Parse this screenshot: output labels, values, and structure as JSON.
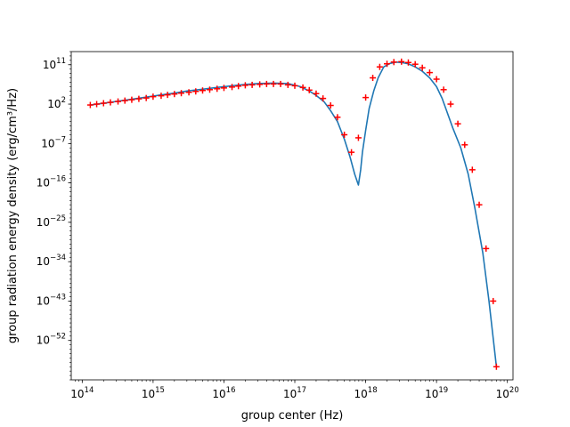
{
  "chart_data": {
    "type": "line",
    "xlabel": "group center (Hz)",
    "ylabel": "group radiation energy density (erg/cm³/Hz)",
    "x_scale": "log",
    "y_scale": "log",
    "xlim": [
      70000000000000.0,
      1.2e+20
    ],
    "ylim": [
      1e-61,
      100000000000000.0
    ],
    "x_ticks": [
      {
        "value": 100000000000000.0,
        "base": "10",
        "exp": "14"
      },
      {
        "value": 1000000000000000.0,
        "base": "10",
        "exp": "15"
      },
      {
        "value": 1e+16,
        "base": "10",
        "exp": "16"
      },
      {
        "value": 1e+17,
        "base": "10",
        "exp": "17"
      },
      {
        "value": 1e+18,
        "base": "10",
        "exp": "18"
      },
      {
        "value": 1e+19,
        "base": "10",
        "exp": "19"
      },
      {
        "value": 1e+20,
        "base": "10",
        "exp": "20"
      }
    ],
    "y_ticks": [
      {
        "value": 100000000000.0,
        "base": "10",
        "exp": "11"
      },
      {
        "value": 100.0,
        "base": "10",
        "exp": "2"
      },
      {
        "value": 1e-07,
        "base": "10",
        "exp": "−7"
      },
      {
        "value": 1e-16,
        "base": "10",
        "exp": "−16"
      },
      {
        "value": 1e-25,
        "base": "10",
        "exp": "−25"
      },
      {
        "value": 1e-34,
        "base": "10",
        "exp": "−34"
      },
      {
        "value": 1e-43,
        "base": "10",
        "exp": "−43"
      },
      {
        "value": 1e-52,
        "base": "10",
        "exp": "−52"
      }
    ],
    "series": [
      {
        "style": "line",
        "color": "#1f77b4",
        "points": [
          [
            130000000000000.0,
            63.0
          ],
          [
            200000000000000.0,
            160.0
          ],
          [
            300000000000000.0,
            400.0
          ],
          [
            500000000000000.0,
            1300.0
          ],
          [
            800000000000000.0,
            4000.0
          ],
          [
            1300000000000000.0,
            13000.0
          ],
          [
            2000000000000000.0,
            32000.0
          ],
          [
            3000000000000000.0,
            100000.0
          ],
          [
            5000000000000000.0,
            250000.0
          ],
          [
            8000000000000000.0,
            630000.0
          ],
          [
            1.3e+16,
            1600000.0
          ],
          [
            2e+16,
            3200000.0
          ],
          [
            3e+16,
            5000000.0
          ],
          [
            5e+16,
            6300000.0
          ],
          [
            8e+16,
            5000000.0
          ],
          [
            1.2e+17,
            1000000.0
          ],
          [
            1.6e+17,
            100000.0
          ],
          [
            2e+17,
            10000.0
          ],
          [
            2.6e+17,
            320.0
          ],
          [
            3.2e+17,
            3.2
          ],
          [
            4e+17,
            0.01
          ],
          [
            5e+17,
            1e-06
          ],
          [
            6e+17,
            1e-10
          ],
          [
            7e+17,
            1e-14
          ],
          [
            7.9e+17,
            3.2e-17
          ],
          [
            8.5e+17,
            1e-13
          ],
          [
            9e+17,
            1e-09
          ],
          [
            1e+18,
            0.0001
          ],
          [
            1.12e+18,
            10.0
          ],
          [
            1.3e+18,
            100000.0
          ],
          [
            1.5e+18,
            100000000.0
          ],
          [
            1.8e+18,
            32000000000.0
          ],
          [
            2.2e+18,
            200000000000.0
          ],
          [
            2.7e+18,
            400000000000.0
          ],
          [
            3.2e+18,
            320000000000.0
          ],
          [
            4e+18,
            160000000000.0
          ],
          [
            5e+18,
            32000000000.0
          ],
          [
            6.3e+18,
            3200000000.0
          ],
          [
            8e+18,
            100000000.0
          ],
          [
            1e+19,
            1000000.0
          ],
          [
            1.2e+19,
            2000.0
          ],
          [
            1.4e+19,
            2.0
          ],
          [
            1.7e+19,
            0.00032
          ],
          [
            2.2e+19,
            1e-08
          ],
          [
            2.8e+19,
            1e-14
          ],
          [
            3.5e+19,
            1e-22
          ],
          [
            4.5e+19,
            1e-32
          ],
          [
            5.5e+19,
            1e-43
          ],
          [
            7e+19,
            1e-58
          ]
        ]
      },
      {
        "style": "marker",
        "marker": "+",
        "color": "#ff0000",
        "points": [
          [
            130000000000000.0,
            63.0
          ],
          [
            160000000000000.0,
            100.0
          ],
          [
            200000000000000.0,
            160.0
          ],
          [
            250000000000000.0,
            250.0
          ],
          [
            320000000000000.0,
            400.0
          ],
          [
            400000000000000.0,
            630.0
          ],
          [
            500000000000000.0,
            1000.0
          ],
          [
            630000000000000.0,
            1600.0
          ],
          [
            800000000000000.0,
            2500.0
          ],
          [
            1000000000000000.0,
            5000.0
          ],
          [
            1300000000000000.0,
            8000.0
          ],
          [
            1600000000000000.0,
            13000.0
          ],
          [
            2000000000000000.0,
            20000.0
          ],
          [
            2500000000000000.0,
            32000.0
          ],
          [
            3200000000000000.0,
            50000.0
          ],
          [
            4000000000000000.0,
            80000.0
          ],
          [
            5000000000000000.0,
            130000.0
          ],
          [
            6300000000000000.0,
            200000.0
          ],
          [
            8000000000000000.0,
            320000.0
          ],
          [
            1e+16,
            500000.0
          ],
          [
            1.3e+16,
            800000.0
          ],
          [
            1.6e+16,
            1300000.0
          ],
          [
            2e+16,
            2000000.0
          ],
          [
            2.5e+16,
            2500000.0
          ],
          [
            3.2e+16,
            3200000.0
          ],
          [
            4e+16,
            4000000.0
          ],
          [
            5e+16,
            4000000.0
          ],
          [
            6.3e+16,
            4000000.0
          ],
          [
            8e+16,
            2500000.0
          ],
          [
            1e+17,
            1600000.0
          ],
          [
            1.3e+17,
            630000.0
          ],
          [
            1.6e+17,
            160000.0
          ],
          [
            2e+17,
            25000.0
          ],
          [
            2.5e+17,
            2000.0
          ],
          [
            3.2e+17,
            50.0
          ],
          [
            4e+17,
            0.1
          ],
          [
            5e+17,
            1e-05
          ],
          [
            6.3e+17,
            1e-09
          ],
          [
            7.9e+17,
            2e-06
          ],
          [
            1e+18,
            3200.0
          ],
          [
            1.26e+18,
            100000000.0
          ],
          [
            1.58e+18,
            32000000000.0
          ],
          [
            2e+18,
            160000000000.0
          ],
          [
            2.5e+18,
            400000000000.0
          ],
          [
            3.2e+18,
            500000000000.0
          ],
          [
            4e+18,
            320000000000.0
          ],
          [
            5e+18,
            130000000000.0
          ],
          [
            6.3e+18,
            20000000000.0
          ],
          [
            8e+18,
            1600000000.0
          ],
          [
            1e+19,
            50000000.0
          ],
          [
            1.26e+19,
            200000.0
          ],
          [
            1.58e+19,
            100.0
          ],
          [
            2e+19,
            0.0032
          ],
          [
            2.5e+19,
            5e-08
          ],
          [
            3.2e+19,
            1e-13
          ],
          [
            4e+19,
            1e-21
          ],
          [
            5e+19,
            1e-31
          ],
          [
            6.3e+19,
            1e-43
          ],
          [
            7e+19,
            1e-58
          ]
        ]
      }
    ]
  }
}
